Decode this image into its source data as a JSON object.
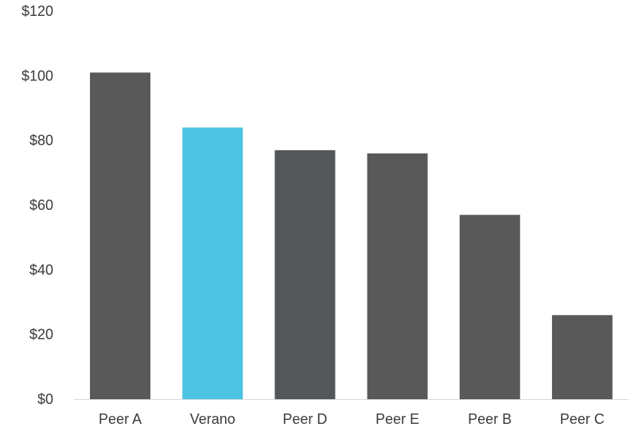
{
  "chart_data": {
    "type": "bar",
    "categories": [
      "Peer A",
      "Verano",
      "Peer D",
      "Peer E",
      "Peer B",
      "Peer C"
    ],
    "values": [
      101,
      84,
      77,
      76,
      57,
      26
    ],
    "colors": [
      "#595959",
      "#4cc3e0",
      "#53575a",
      "#595959",
      "#595959",
      "#595959"
    ],
    "yticks": [
      "$0",
      "$20",
      "$40",
      "$60",
      "$80",
      "$100",
      "$120"
    ],
    "ylim": [
      0,
      120
    ],
    "title": "",
    "xlabel": "",
    "ylabel": "",
    "grid": false,
    "legend": "none"
  }
}
